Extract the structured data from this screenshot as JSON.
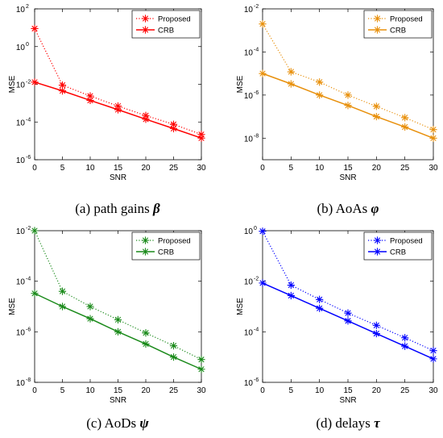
{
  "chart_data": [
    {
      "type": "line",
      "caption": "(a) path gains",
      "caption_symbol": "β",
      "xlabel": "SNR",
      "ylabel": "MSE",
      "x": [
        0,
        5,
        10,
        15,
        20,
        25,
        30
      ],
      "x_ticks": [
        "0",
        "5",
        "10",
        "15",
        "20",
        "25",
        "30"
      ],
      "xlim": [
        0,
        30
      ],
      "y_scale": "log",
      "ylim": [
        1e-06,
        100
      ],
      "y_tick_exponents": [
        "2",
        "0",
        "-2",
        "-4",
        "-6"
      ],
      "color": "#ff0000",
      "legend_position": "top-right",
      "series": [
        {
          "name": "Proposed",
          "style": "dotted",
          "values": [
            9.0,
            0.009,
            0.0024,
            0.0007,
            0.00022,
            7.5e-05,
            2.2e-05
          ]
        },
        {
          "name": "CRB",
          "style": "solid",
          "values": [
            0.013,
            0.0045,
            0.0014,
            0.00045,
            0.00014,
            4.5e-05,
            1.4e-05
          ]
        }
      ]
    },
    {
      "type": "line",
      "caption": "(b) AoAs",
      "caption_symbol": "φ",
      "xlabel": "SNR",
      "ylabel": "MSE",
      "x": [
        0,
        5,
        10,
        15,
        20,
        25,
        30
      ],
      "x_ticks": [
        "0",
        "5",
        "10",
        "15",
        "20",
        "25",
        "30"
      ],
      "xlim": [
        0,
        30
      ],
      "y_scale": "log",
      "ylim": [
        1e-09,
        0.01
      ],
      "y_tick_exponents": [
        "-2",
        "-4",
        "-6",
        "-8"
      ],
      "color": "#e8900c",
      "legend_position": "top-right",
      "series": [
        {
          "name": "Proposed",
          "style": "dotted",
          "values": [
            0.002,
            1.2e-05,
            4e-06,
            1e-06,
            3e-07,
            9e-08,
            2.5e-08
          ]
        },
        {
          "name": "CRB",
          "style": "solid",
          "values": [
            1e-05,
            3.3e-06,
            1e-06,
            3.3e-07,
            1e-07,
            3.3e-08,
            1e-08
          ]
        }
      ]
    },
    {
      "type": "line",
      "caption": "(c) AoDs",
      "caption_symbol": "ψ",
      "xlabel": "SNR",
      "ylabel": "MSE",
      "x": [
        0,
        5,
        10,
        15,
        20,
        25,
        30
      ],
      "x_ticks": [
        "0",
        "5",
        "10",
        "15",
        "20",
        "25",
        "30"
      ],
      "xlim": [
        0,
        30
      ],
      "y_scale": "log",
      "ylim": [
        1e-08,
        0.01
      ],
      "y_tick_exponents": [
        "-2",
        "-4",
        "-6",
        "-8"
      ],
      "color": "#1a8a1a",
      "legend_position": "top-right",
      "series": [
        {
          "name": "Proposed",
          "style": "dotted",
          "values": [
            0.01,
            4e-05,
            1e-05,
            3e-06,
            9e-07,
            2.8e-07,
            8e-08
          ]
        },
        {
          "name": "CRB",
          "style": "solid",
          "values": [
            3.3e-05,
            1e-05,
            3.3e-06,
            1e-06,
            3.3e-07,
            1e-07,
            3.3e-08
          ]
        }
      ]
    },
    {
      "type": "line",
      "caption": "(d) delays",
      "caption_symbol": "τ",
      "xlabel": "SNR",
      "ylabel": "MSE",
      "x": [
        0,
        5,
        10,
        15,
        20,
        25,
        30
      ],
      "x_ticks": [
        "0",
        "5",
        "10",
        "15",
        "20",
        "25",
        "30"
      ],
      "xlim": [
        0,
        30
      ],
      "y_scale": "log",
      "ylim": [
        1e-06,
        1
      ],
      "y_tick_exponents": [
        "0",
        "-2",
        "-4",
        "-6"
      ],
      "color": "#0000ff",
      "legend_position": "top-right",
      "series": [
        {
          "name": "Proposed",
          "style": "dotted",
          "values": [
            0.95,
            0.007,
            0.0019,
            0.00055,
            0.00018,
            5.8e-05,
            1.8e-05
          ]
        },
        {
          "name": "CRB",
          "style": "solid",
          "values": [
            0.0085,
            0.0027,
            0.00085,
            0.00027,
            8.5e-05,
            2.7e-05,
            8.5e-06
          ]
        }
      ]
    }
  ]
}
